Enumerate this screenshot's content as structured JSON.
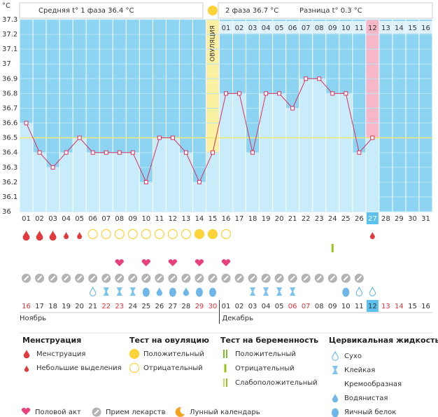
{
  "header": {
    "unit": "°C",
    "phase1": "Средняя t° 1 фаза 36.4 °C",
    "phase2": "2 фаза 36.7 °C",
    "diff": "Разница t° 0.3 °C",
    "ovulation": "ОВУЛЯЦИЯ"
  },
  "chart_data": {
    "type": "line",
    "categories": [
      "01",
      "02",
      "03",
      "04",
      "05",
      "06",
      "07",
      "08",
      "09",
      "10",
      "11",
      "12",
      "13",
      "14",
      "15",
      "16",
      "17",
      "18",
      "19",
      "20",
      "21",
      "22",
      "23",
      "24",
      "25",
      "26",
      "27",
      "28",
      "29",
      "30",
      "31"
    ],
    "series": [
      {
        "color": "#d8305c",
        "values": [
          36.6,
          36.4,
          36.3,
          36.4,
          36.5,
          36.4,
          36.4,
          36.4,
          36.4,
          36.2,
          36.5,
          36.5,
          36.4,
          36.2,
          36.4,
          36.8,
          36.8,
          36.4,
          36.8,
          36.8,
          36.7,
          36.9,
          36.9,
          36.8,
          36.8,
          36.4,
          36.5,
          null,
          null,
          null,
          null
        ]
      }
    ],
    "ylim": [
      36,
      37.3
    ],
    "yticks": [
      36,
      36.1,
      36.2,
      36.3,
      36.4,
      36.5,
      36.6,
      36.7,
      36.8,
      36.9,
      37,
      37.1,
      37.2,
      37.3
    ],
    "coverline": 36.5,
    "ovulation_day": "15",
    "current_day": "27",
    "phase2_labels": [
      "01",
      "02",
      "03",
      "04",
      "05",
      "06",
      "07",
      "08",
      "09",
      "10",
      "11",
      "12",
      "13",
      "14",
      "15",
      "16"
    ]
  },
  "calendar": {
    "days": [
      "16",
      "17",
      "18",
      "19",
      "20",
      "21",
      "22",
      "23",
      "24",
      "25",
      "26",
      "27",
      "28",
      "29",
      "30",
      "01",
      "02",
      "03",
      "04",
      "05",
      "06",
      "07",
      "08",
      "09",
      "10",
      "11",
      "12",
      "13",
      "14",
      "15",
      "16"
    ],
    "weekend": [
      true,
      false,
      false,
      false,
      false,
      false,
      true,
      true,
      false,
      false,
      false,
      false,
      false,
      true,
      true,
      false,
      false,
      false,
      false,
      false,
      true,
      true,
      false,
      false,
      false,
      false,
      false,
      true,
      true,
      false,
      false
    ],
    "months": [
      "Ноябрь",
      "Декабрь"
    ]
  },
  "rows": {
    "menstruation": [
      0,
      0,
      0,
      1,
      1,
      null,
      null,
      null,
      null,
      null,
      null,
      null,
      null,
      null,
      null,
      null,
      null,
      null,
      null,
      null,
      null,
      null,
      null,
      null,
      null,
      null,
      1,
      null,
      null,
      null,
      null
    ],
    "ovulation_test": [
      null,
      null,
      null,
      null,
      null,
      1,
      1,
      1,
      1,
      1,
      1,
      1,
      1,
      0,
      0,
      1,
      null,
      null,
      null,
      null,
      null,
      null,
      null,
      null,
      null,
      null,
      null,
      null,
      null,
      null,
      null
    ],
    "pregnancy_test": [
      null,
      null,
      null,
      null,
      null,
      null,
      null,
      null,
      null,
      null,
      null,
      null,
      null,
      null,
      null,
      null,
      null,
      null,
      null,
      null,
      null,
      null,
      null,
      1,
      null,
      null,
      null,
      null,
      null,
      null,
      null
    ],
    "intercourse": [
      false,
      false,
      false,
      false,
      false,
      false,
      false,
      true,
      false,
      true,
      false,
      true,
      false,
      true,
      false,
      true,
      false,
      false,
      false,
      false,
      false,
      false,
      false,
      false,
      false,
      false,
      false,
      false,
      false,
      false,
      false
    ],
    "medication": [
      true,
      true,
      true,
      true,
      true,
      true,
      true,
      true,
      true,
      true,
      true,
      true,
      true,
      true,
      true,
      true,
      true,
      true,
      true,
      true,
      true,
      true,
      true,
      true,
      true,
      true,
      false,
      false,
      false,
      false,
      false
    ],
    "cervical_fluid": [
      null,
      null,
      null,
      null,
      null,
      0,
      1,
      1,
      1,
      4,
      3,
      4,
      3,
      4,
      4,
      2,
      2,
      1,
      1,
      1,
      1,
      null,
      2,
      null,
      4,
      0,
      0,
      null,
      null,
      null,
      null
    ]
  },
  "legend": {
    "menstruation": {
      "title": "Менструация",
      "items": [
        "Менструация",
        "Небольшие выделения"
      ]
    },
    "ovulation_test": {
      "title": "Тест на овуляцию",
      "items": [
        "Положительный",
        "Отрицательный"
      ]
    },
    "pregnancy_test": {
      "title": "Тест на беременность",
      "items": [
        "Положительный",
        "Отрицательный",
        "Слабоположительный"
      ]
    },
    "cervical_fluid": {
      "title": "Цервикальная жидкость",
      "items": [
        "Сухо",
        "Клейкая",
        "Кремообразная",
        "Водянистая",
        "Яичный белок"
      ]
    },
    "other": [
      "Половой акт",
      "Прием лекарств",
      "Лунный календарь"
    ]
  }
}
